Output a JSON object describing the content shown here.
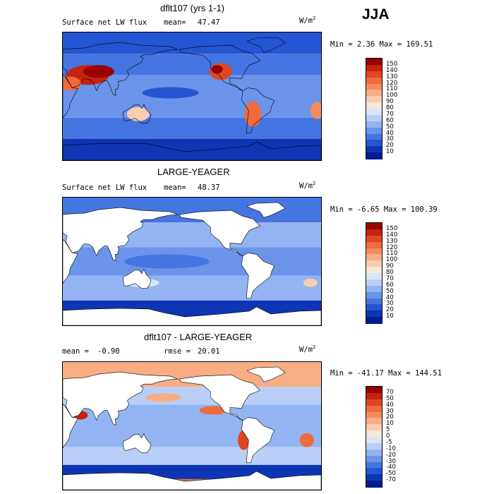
{
  "season": "JJA",
  "panels": [
    {
      "title": "dflt107 (yrs 1-1)",
      "left_label": "Surface net LW flux",
      "stat_label": "mean=",
      "stat_value": "47.47",
      "stat2_label": "",
      "stat2_value": "",
      "units": "W/m",
      "units_sup": "2",
      "minmax": "Min =    2.36 Max = 169.51",
      "ocean_only": false,
      "levels": [
        "150",
        "140",
        "130",
        "120",
        "110",
        "100",
        "90",
        "80",
        "70",
        "60",
        "50",
        "40",
        "30",
        "20",
        "10"
      ],
      "colors": [
        "#990000",
        "#c4230c",
        "#df4722",
        "#ef6a3f",
        "#f68c5c",
        "#f8ad85",
        "#f9cdb0",
        "#f8e7db",
        "#dbe5f7",
        "#b9cff7",
        "#93b4f2",
        "#6a93ea",
        "#4575e1",
        "#2455d3",
        "#0e35b4",
        "#001c8f"
      ]
    },
    {
      "title": "LARGE-YEAGER",
      "left_label": "Surface net LW flux",
      "stat_label": "mean=",
      "stat_value": "48.37",
      "stat2_label": "",
      "stat2_value": "",
      "units": "W/m",
      "units_sup": "2",
      "minmax": "Min =  -6.65 Max = 100.39",
      "ocean_only": true,
      "levels": [
        "150",
        "140",
        "130",
        "120",
        "110",
        "100",
        "90",
        "80",
        "70",
        "60",
        "50",
        "40",
        "30",
        "20",
        "10"
      ],
      "colors": [
        "#990000",
        "#c4230c",
        "#df4722",
        "#ef6a3f",
        "#f68c5c",
        "#f8ad85",
        "#f9cdb0",
        "#f8e7db",
        "#dbe5f7",
        "#b9cff7",
        "#93b4f2",
        "#6a93ea",
        "#4575e1",
        "#2455d3",
        "#0e35b4",
        "#001c8f"
      ]
    },
    {
      "title": "dflt107 - LARGE-YEAGER",
      "left_label": "mean =",
      "stat_label": "",
      "stat_value": "-0.90",
      "stat2_label": "rmse =",
      "stat2_value": "20.01",
      "units": "W/m",
      "units_sup": "2",
      "minmax": "Min = -41.17 Max = 144.51",
      "ocean_only": true,
      "levels": [
        "70",
        "50",
        "40",
        "30",
        "20",
        "10",
        "5",
        "0",
        "-5",
        "-10",
        "-20",
        "-30",
        "-40",
        "-50",
        "-70"
      ],
      "colors": [
        "#990000",
        "#c4230c",
        "#df4722",
        "#ef6a3f",
        "#f68c5c",
        "#f8ad85",
        "#f9cdb0",
        "#f8e7db",
        "#dbe5f7",
        "#b9cff7",
        "#93b4f2",
        "#6a93ea",
        "#4575e1",
        "#2455d3",
        "#0e35b4",
        "#001c8f"
      ]
    }
  ],
  "chart_data": [
    {
      "type": "heatmap",
      "title": "dflt107 (yrs 1-1)",
      "subtitle": "Surface net LW flux",
      "mean": 47.47,
      "min": 2.36,
      "max": 169.51,
      "units": "W/m2",
      "contour_levels": [
        10,
        20,
        30,
        40,
        50,
        60,
        70,
        80,
        90,
        100,
        110,
        120,
        130,
        140,
        150
      ],
      "domain": "global, land and ocean"
    },
    {
      "type": "heatmap",
      "title": "LARGE-YEAGER",
      "subtitle": "Surface net LW flux",
      "mean": 48.37,
      "min": -6.65,
      "max": 100.39,
      "units": "W/m2",
      "contour_levels": [
        10,
        20,
        30,
        40,
        50,
        60,
        70,
        80,
        90,
        100,
        110,
        120,
        130,
        140,
        150
      ],
      "domain": "ocean only"
    },
    {
      "type": "heatmap",
      "title": "dflt107 - LARGE-YEAGER",
      "mean": -0.9,
      "rmse": 20.01,
      "min": -41.17,
      "max": 144.51,
      "units": "W/m2",
      "contour_levels": [
        -70,
        -50,
        -40,
        -30,
        -20,
        -10,
        -5,
        0,
        5,
        10,
        20,
        30,
        40,
        50,
        70
      ],
      "domain": "ocean only"
    }
  ]
}
